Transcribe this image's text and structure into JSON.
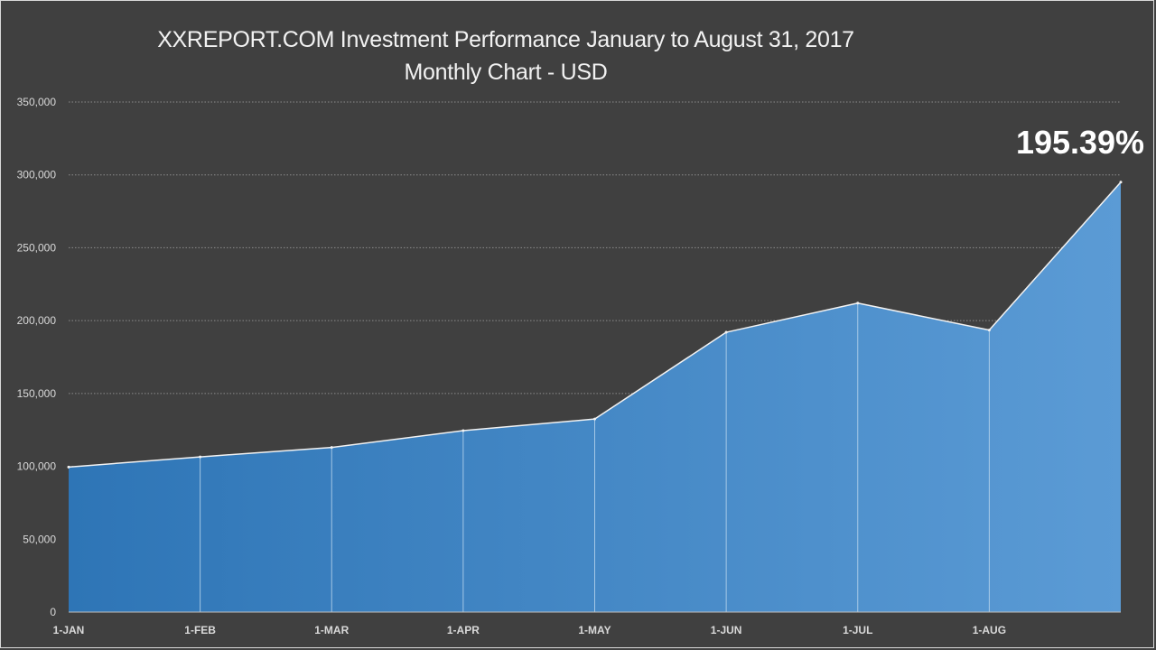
{
  "chart_data": {
    "type": "area",
    "title": "XXREPORT.COM Investment Performance January to August 31, 2017",
    "subtitle": "Monthly Chart - USD",
    "x_labels": [
      "1-JAN",
      "1-FEB",
      "1-MAR",
      "1-APR",
      "1-MAY",
      "1-JUN",
      "1-JUL",
      "1-AUG",
      ""
    ],
    "values": [
      99500,
      106500,
      113000,
      124500,
      132500,
      192000,
      212000,
      193500,
      295000
    ],
    "y_ticks": [
      "0",
      "50,000",
      "100,000",
      "150,000",
      "200,000",
      "250,000",
      "300,000",
      "350,000"
    ],
    "ylim": [
      0,
      350000
    ],
    "grid": "horizontal dotted",
    "annotation": "195.39%",
    "colors": {
      "background": "#404040",
      "fill_start": "#2e75b6",
      "fill_end": "#5b9bd5",
      "line": "#f2f2f2",
      "grid": "#8c8c8c",
      "text": "#d9d9d9"
    }
  }
}
